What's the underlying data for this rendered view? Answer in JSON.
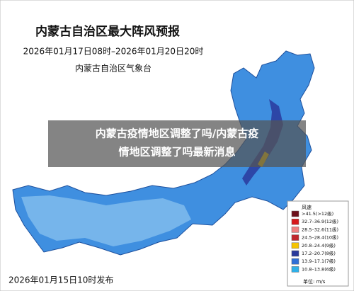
{
  "map": {
    "title": "内蒙古自治区最大阵风预报",
    "period": "2026年01月17日08时–2026年01月20日20时",
    "agency": "内蒙古自治区气象台",
    "issued": "2026年01月15日10时发布",
    "legend": {
      "title": "风速",
      "unit": "单位: m/s",
      "items": [
        {
          "label": ">41.5(>12级)",
          "color": "#6b0f1a"
        },
        {
          "label": "32.7–36.9(12级)",
          "color": "#d7191c"
        },
        {
          "label": "28.5–32.6(11级)",
          "color": "#f08080"
        },
        {
          "label": "24.5–28.4(10级)",
          "color": "#c0282d"
        },
        {
          "label": "20.8–24.4(9级)",
          "color": "#f5c400"
        },
        {
          "label": "17.2–20.7(8级)",
          "color": "#2a3a9c"
        },
        {
          "label": "13.9–17.1(7级)",
          "color": "#2f6fd6"
        },
        {
          "label": "10.8–13.8(6级)",
          "color": "#2fb0e8"
        }
      ]
    }
  },
  "overlay": {
    "lines": [
      "内蒙古疫情地区调整了吗/内蒙古疫",
      "情地区调整了吗最新消息"
    ]
  }
}
